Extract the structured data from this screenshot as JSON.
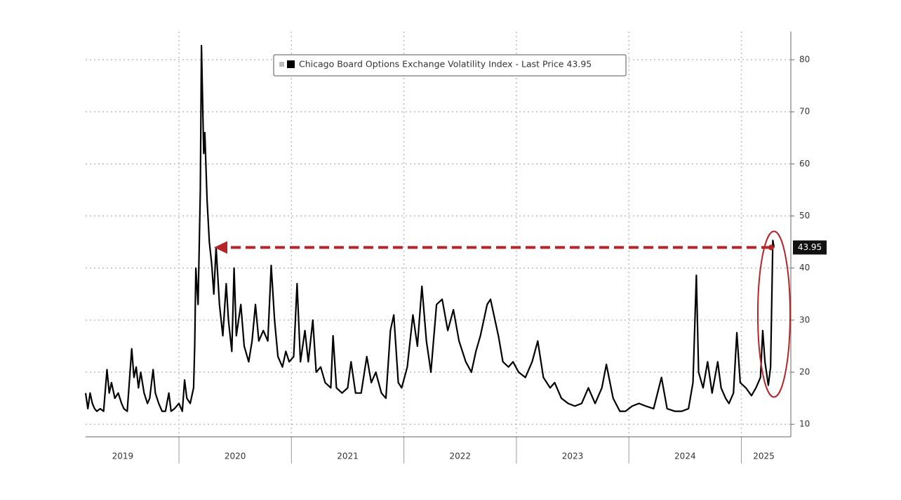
{
  "chart_data": {
    "type": "line",
    "xlim": [
      2019.17,
      2025.44
    ],
    "ylim": [
      7.6,
      85.4
    ],
    "yticks": [
      10,
      20,
      30,
      40,
      50,
      60,
      70,
      80
    ],
    "xgrid": [
      2020,
      2021,
      2022,
      2023,
      2024,
      2025
    ],
    "xticks": [
      {
        "value": 2019.5,
        "label": "2019"
      },
      {
        "value": 2020.5,
        "label": "2020"
      },
      {
        "value": 2021.5,
        "label": "2021"
      },
      {
        "value": 2022.5,
        "label": "2022"
      },
      {
        "value": 2023.5,
        "label": "2023"
      },
      {
        "value": 2024.5,
        "label": "2024"
      },
      {
        "value": 2025.2,
        "label": "2025"
      }
    ],
    "grid": true,
    "x": [
      2019.17,
      2019.19,
      2019.21,
      2019.23,
      2019.25,
      2019.27,
      2019.3,
      2019.33,
      2019.36,
      2019.38,
      2019.4,
      2019.43,
      2019.46,
      2019.49,
      2019.51,
      2019.54,
      2019.58,
      2019.6,
      2019.62,
      2019.64,
      2019.66,
      2019.69,
      2019.72,
      2019.74,
      2019.77,
      2019.79,
      2019.82,
      2019.85,
      2019.88,
      2019.91,
      2019.93,
      2019.96,
      2020.0,
      2020.03,
      2020.05,
      2020.07,
      2020.1,
      2020.13,
      2020.14,
      2020.15,
      2020.17,
      2020.19,
      2020.2,
      2020.22,
      2020.23,
      2020.25,
      2020.27,
      2020.29,
      2020.31,
      2020.33,
      2020.36,
      2020.39,
      2020.42,
      2020.44,
      2020.47,
      2020.49,
      2020.51,
      2020.55,
      2020.58,
      2020.62,
      2020.65,
      2020.68,
      2020.71,
      2020.75,
      2020.79,
      2020.82,
      2020.85,
      2020.88,
      2020.92,
      2020.95,
      2020.98,
      2021.02,
      2021.05,
      2021.08,
      2021.12,
      2021.15,
      2021.19,
      2021.22,
      2021.26,
      2021.3,
      2021.35,
      2021.37,
      2021.4,
      2021.45,
      2021.5,
      2021.53,
      2021.57,
      2021.62,
      2021.67,
      2021.71,
      2021.75,
      2021.8,
      2021.84,
      2021.88,
      2021.91,
      2021.95,
      2021.98,
      2022.03,
      2022.08,
      2022.12,
      2022.16,
      2022.2,
      2022.24,
      2022.29,
      2022.34,
      2022.39,
      2022.44,
      2022.49,
      2022.55,
      2022.6,
      2022.64,
      2022.68,
      2022.74,
      2022.77,
      2022.8,
      2022.84,
      2022.88,
      2022.93,
      2022.97,
      2023.02,
      2023.08,
      2023.14,
      2023.19,
      2023.24,
      2023.3,
      2023.34,
      2023.4,
      2023.46,
      2023.52,
      2023.58,
      2023.64,
      2023.7,
      2023.76,
      2023.8,
      2023.86,
      2023.92,
      2023.97,
      2024.03,
      2024.09,
      2024.15,
      2024.22,
      2024.29,
      2024.34,
      2024.41,
      2024.47,
      2024.53,
      2024.57,
      2024.6,
      2024.62,
      2024.66,
      2024.7,
      2024.74,
      2024.79,
      2024.82,
      2024.86,
      2024.89,
      2024.93,
      2024.96,
      2024.99,
      2025.04,
      2025.09,
      2025.13,
      2025.17,
      2025.19,
      2025.21,
      2025.24,
      2025.26,
      2025.28,
      2025.29
    ],
    "series": [
      {
        "name": "Chicago Board Options Exchange Volatility Index - Last Price 43.95",
        "color": "#000000",
        "values": [
          16,
          13,
          16,
          14,
          13,
          12.5,
          13,
          12.5,
          20.5,
          16,
          18,
          15,
          16,
          14,
          13,
          12.5,
          24.5,
          19,
          21,
          17,
          20,
          16,
          14,
          15,
          20.5,
          16,
          14,
          12.5,
          12.5,
          16,
          12.5,
          13,
          14,
          12.5,
          18.5,
          15,
          14,
          17,
          25,
          40,
          33,
          55,
          82.7,
          62,
          66,
          53,
          45,
          41,
          35,
          44,
          33,
          27,
          37,
          30,
          24,
          40,
          27,
          33,
          25,
          22,
          26,
          33,
          26,
          28,
          26,
          40.5,
          30,
          23,
          21,
          24,
          22,
          23,
          37,
          22,
          28,
          22,
          30,
          20,
          21,
          18,
          17,
          27,
          17,
          16,
          17,
          22,
          16,
          16,
          23,
          18,
          20,
          16,
          15,
          28,
          31,
          18,
          17,
          21,
          31,
          25,
          36.5,
          26,
          20,
          33,
          34,
          28,
          32,
          26,
          22,
          20,
          24,
          27,
          33,
          34,
          31,
          27,
          22,
          21,
          22,
          20,
          19,
          22,
          26,
          19,
          17,
          18,
          15,
          14,
          13.5,
          14,
          17,
          14,
          17,
          21.5,
          15,
          12.5,
          12.5,
          13.5,
          14,
          13.5,
          13,
          19,
          13,
          12.5,
          12.5,
          13,
          18,
          38.6,
          20,
          17,
          22,
          16,
          22,
          17,
          15,
          14,
          16,
          27.6,
          18,
          17,
          15.5,
          17,
          19,
          28,
          22,
          17.5,
          21,
          45.3,
          43.95
        ]
      }
    ]
  }
}
